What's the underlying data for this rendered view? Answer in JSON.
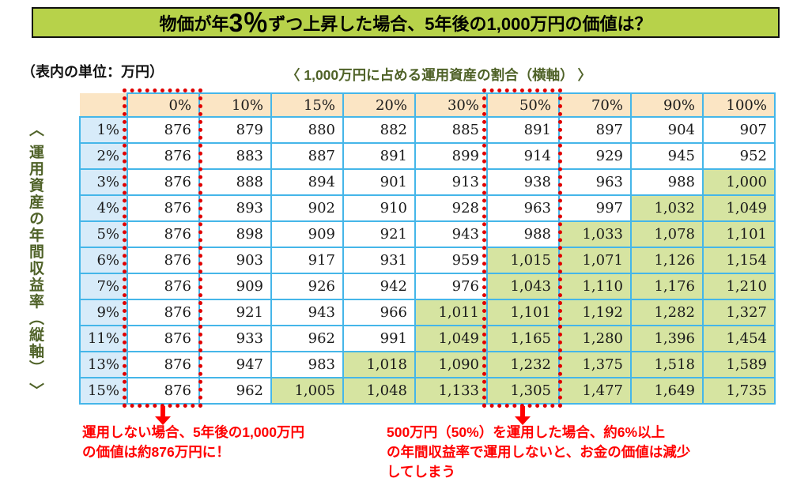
{
  "header": {
    "title_pre": "物価が年",
    "title_big": "3％",
    "title_post": "ずつ上昇した場合、5年後の1,000万円の価値は？"
  },
  "labels": {
    "unit_note": "（表内の単位：万円）",
    "horizontal_axis": "〈 1,000万円に占める運用資産の割合（横軸） 〉",
    "vertical_axis": "〈 運用資産の年間収益率（縦軸） 〉"
  },
  "chart_data": {
    "type": "table",
    "title": "物価が年3％ずつ上昇した場合、5年後の1,000万円の価値は？",
    "unit": "万円",
    "xlabel": "1,000万円に占める運用資産の割合（横軸）",
    "ylabel": "運用資産の年間収益率（縦軸）",
    "columns": [
      "0%",
      "10%",
      "15%",
      "20%",
      "30%",
      "50%",
      "70%",
      "90%",
      "100%"
    ],
    "row_labels": [
      "1%",
      "2%",
      "3%",
      "4%",
      "5%",
      "6%",
      "7%",
      "9%",
      "11%",
      "13%",
      "15%"
    ],
    "rows": [
      [
        876,
        879,
        880,
        882,
        885,
        891,
        897,
        904,
        907
      ],
      [
        876,
        883,
        887,
        891,
        899,
        914,
        929,
        945,
        952
      ],
      [
        876,
        888,
        894,
        901,
        913,
        938,
        963,
        988,
        1000
      ],
      [
        876,
        893,
        902,
        910,
        928,
        963,
        997,
        1032,
        1049
      ],
      [
        876,
        898,
        909,
        921,
        943,
        988,
        1033,
        1078,
        1101
      ],
      [
        876,
        903,
        917,
        931,
        959,
        1015,
        1071,
        1126,
        1154
      ],
      [
        876,
        909,
        926,
        942,
        976,
        1043,
        1110,
        1176,
        1210
      ],
      [
        876,
        921,
        943,
        966,
        1011,
        1101,
        1192,
        1282,
        1327
      ],
      [
        876,
        933,
        962,
        991,
        1049,
        1165,
        1280,
        1396,
        1454
      ],
      [
        876,
        947,
        983,
        1018,
        1090,
        1232,
        1375,
        1518,
        1589
      ],
      [
        876,
        962,
        1005,
        1048,
        1133,
        1305,
        1477,
        1649,
        1735
      ]
    ],
    "green_highlight_min_value": 1000,
    "red_dotted_column_indexes": [
      0,
      5
    ]
  },
  "annotations": {
    "left": "運用しない場合、5年後の1,000万円\nの価値は約876万円に！",
    "right": "500万円（50%）を運用した場合、約6%以上\nの年間収益率で運用しないと、お金の価値は減少\nしてしまう"
  },
  "colors": {
    "title_green": "#b7d24a",
    "border_blue": "#45b6e9",
    "header_tan": "#fbe5c4",
    "rowhead_blue": "#d7ebf9",
    "cell_green": "#d6e4a1",
    "axis_olive": "#4f6228",
    "annotation_red": "#ff0000",
    "dotted_red": "#e00000"
  }
}
